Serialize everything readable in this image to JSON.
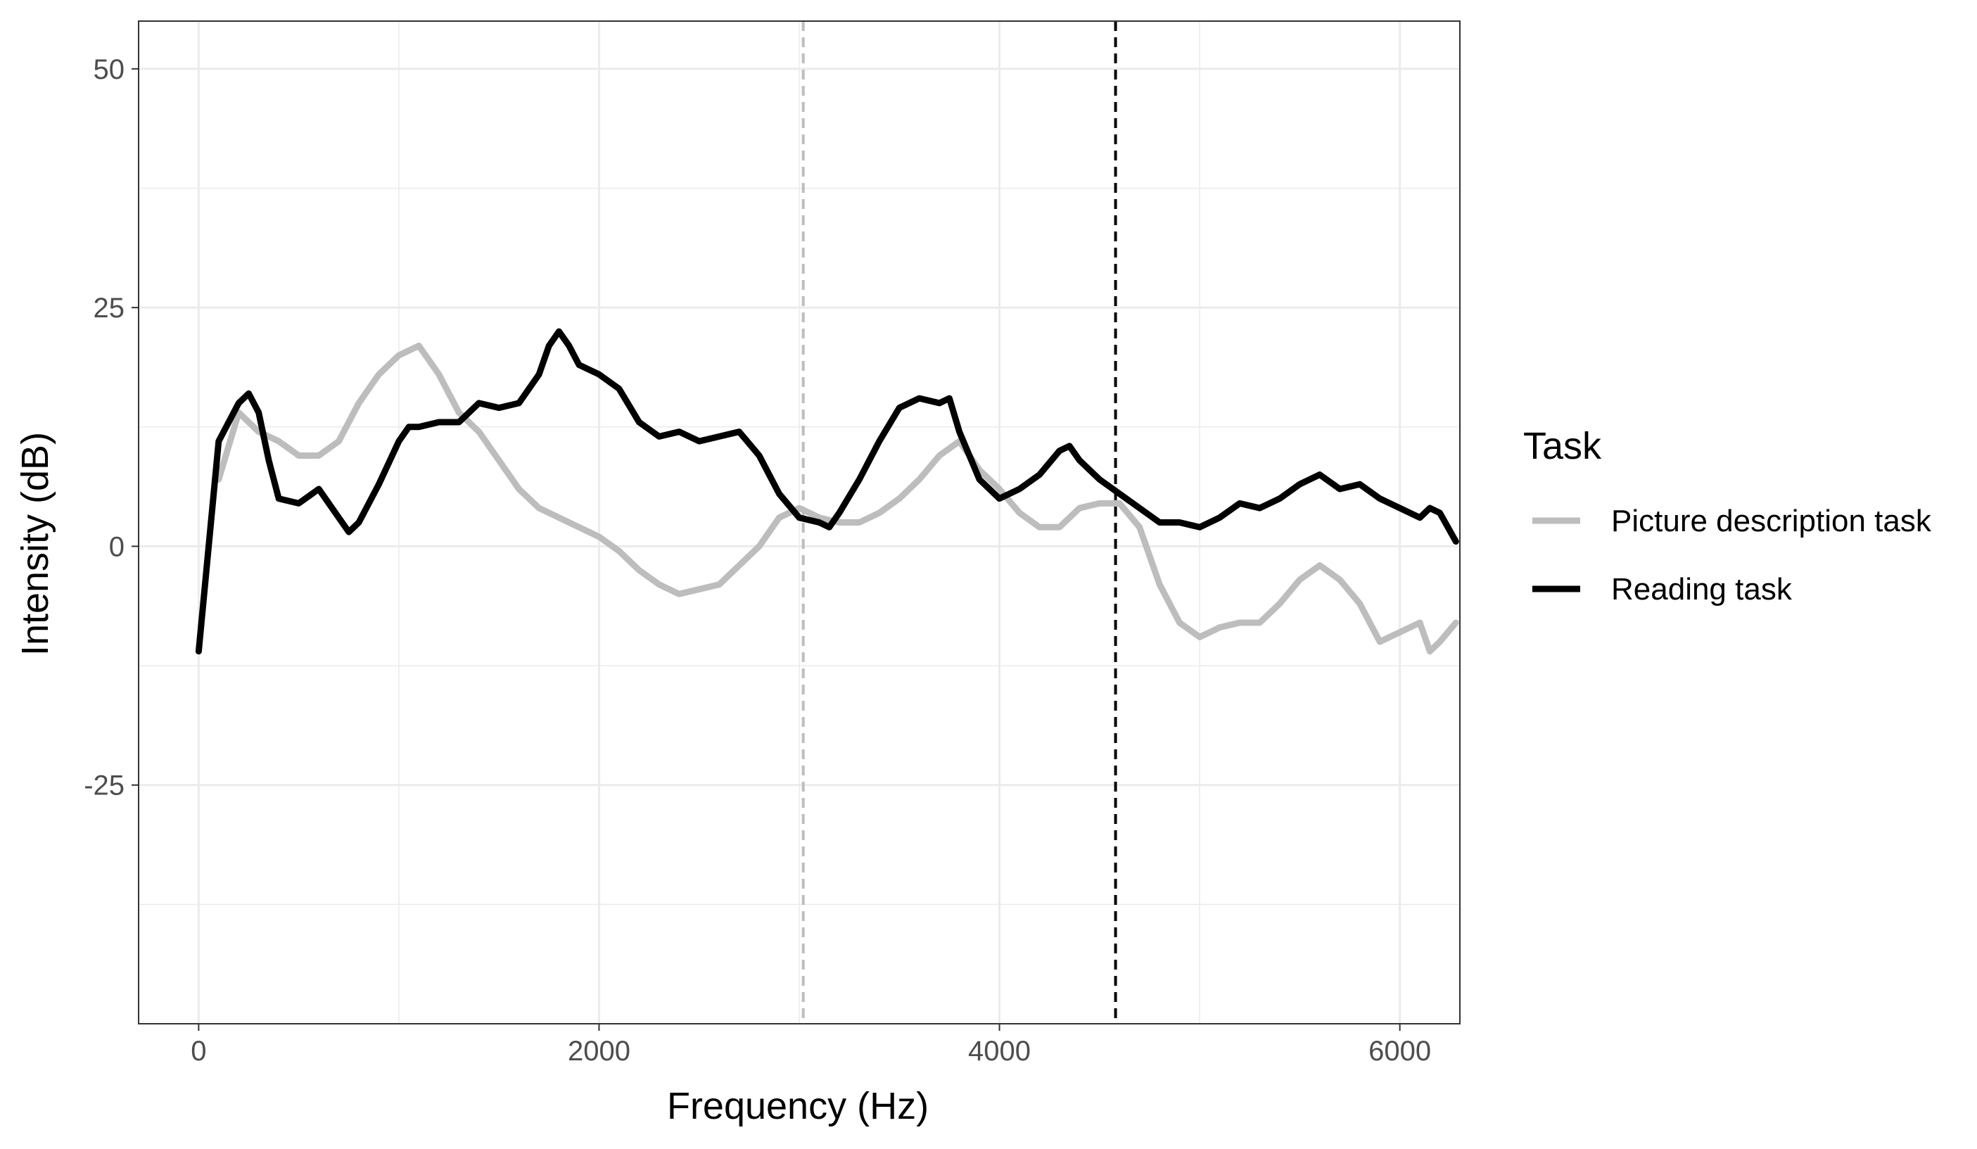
{
  "chart_data": {
    "type": "line",
    "title": "",
    "xlabel": "Frequency (Hz)",
    "ylabel": "Intensity (dB)",
    "xlim": [
      -300,
      6300
    ],
    "ylim": [
      -50,
      55
    ],
    "x_ticks": [
      0,
      2000,
      4000,
      6000
    ],
    "y_ticks": [
      -25,
      0,
      25,
      50
    ],
    "x_tick_labels": [
      "0",
      "2000",
      "4000",
      "6000"
    ],
    "y_tick_labels": [
      "-25",
      "0",
      "25",
      "50"
    ],
    "grid": true,
    "legend": {
      "title": "Task",
      "placement": "right"
    },
    "series": [
      {
        "name": "Picture description task",
        "color": "#bdbdbd",
        "points": [
          [
            100,
            7
          ],
          [
            200,
            14
          ],
          [
            300,
            12
          ],
          [
            400,
            11
          ],
          [
            500,
            9.5
          ],
          [
            600,
            9.5
          ],
          [
            700,
            11
          ],
          [
            800,
            15
          ],
          [
            900,
            18
          ],
          [
            1000,
            20
          ],
          [
            1100,
            21
          ],
          [
            1200,
            18
          ],
          [
            1300,
            14
          ],
          [
            1400,
            12
          ],
          [
            1500,
            9
          ],
          [
            1600,
            6
          ],
          [
            1700,
            4
          ],
          [
            1800,
            3
          ],
          [
            1900,
            2
          ],
          [
            2000,
            1
          ],
          [
            2100,
            -0.5
          ],
          [
            2200,
            -2.5
          ],
          [
            2300,
            -4
          ],
          [
            2400,
            -5
          ],
          [
            2500,
            -4.5
          ],
          [
            2600,
            -4
          ],
          [
            2700,
            -2
          ],
          [
            2800,
            0
          ],
          [
            2900,
            3
          ],
          [
            3000,
            4
          ],
          [
            3100,
            3
          ],
          [
            3200,
            2.5
          ],
          [
            3300,
            2.5
          ],
          [
            3400,
            3.5
          ],
          [
            3500,
            5
          ],
          [
            3600,
            7
          ],
          [
            3700,
            9.5
          ],
          [
            3800,
            11
          ],
          [
            3900,
            8
          ],
          [
            4000,
            6
          ],
          [
            4100,
            3.5
          ],
          [
            4200,
            2
          ],
          [
            4300,
            2
          ],
          [
            4400,
            4
          ],
          [
            4500,
            4.5
          ],
          [
            4600,
            4.5
          ],
          [
            4700,
            2
          ],
          [
            4800,
            -4
          ],
          [
            4900,
            -8
          ],
          [
            5000,
            -9.5
          ],
          [
            5100,
            -8.5
          ],
          [
            5200,
            -8
          ],
          [
            5300,
            -8
          ],
          [
            5400,
            -6
          ],
          [
            5500,
            -3.5
          ],
          [
            5600,
            -2
          ],
          [
            5700,
            -3.5
          ],
          [
            5800,
            -6
          ],
          [
            5900,
            -10
          ],
          [
            6000,
            -9
          ],
          [
            6100,
            -8
          ],
          [
            6150,
            -11
          ],
          [
            6200,
            -10
          ],
          [
            6280,
            -8
          ]
        ]
      },
      {
        "name": "Reading task",
        "color": "#000000",
        "points": [
          [
            0,
            -11
          ],
          [
            100,
            11
          ],
          [
            200,
            15
          ],
          [
            250,
            16
          ],
          [
            300,
            14
          ],
          [
            350,
            9
          ],
          [
            400,
            5
          ],
          [
            500,
            4.5
          ],
          [
            600,
            6
          ],
          [
            700,
            3
          ],
          [
            750,
            1.5
          ],
          [
            800,
            2.5
          ],
          [
            900,
            6.5
          ],
          [
            1000,
            11
          ],
          [
            1050,
            12.5
          ],
          [
            1100,
            12.5
          ],
          [
            1200,
            13
          ],
          [
            1300,
            13
          ],
          [
            1400,
            15
          ],
          [
            1500,
            14.5
          ],
          [
            1600,
            15
          ],
          [
            1700,
            18
          ],
          [
            1750,
            21
          ],
          [
            1800,
            22.5
          ],
          [
            1850,
            21
          ],
          [
            1900,
            19
          ],
          [
            2000,
            18
          ],
          [
            2100,
            16.5
          ],
          [
            2200,
            13
          ],
          [
            2300,
            11.5
          ],
          [
            2400,
            12
          ],
          [
            2500,
            11
          ],
          [
            2600,
            11.5
          ],
          [
            2700,
            12
          ],
          [
            2800,
            9.5
          ],
          [
            2900,
            5.5
          ],
          [
            3000,
            3
          ],
          [
            3100,
            2.5
          ],
          [
            3150,
            2
          ],
          [
            3200,
            3.5
          ],
          [
            3300,
            7
          ],
          [
            3400,
            11
          ],
          [
            3500,
            14.5
          ],
          [
            3600,
            15.5
          ],
          [
            3700,
            15
          ],
          [
            3750,
            15.5
          ],
          [
            3800,
            12
          ],
          [
            3900,
            7
          ],
          [
            4000,
            5
          ],
          [
            4100,
            6
          ],
          [
            4200,
            7.5
          ],
          [
            4300,
            10
          ],
          [
            4350,
            10.5
          ],
          [
            4400,
            9
          ],
          [
            4500,
            7
          ],
          [
            4600,
            5.5
          ],
          [
            4700,
            4
          ],
          [
            4800,
            2.5
          ],
          [
            4900,
            2.5
          ],
          [
            5000,
            2
          ],
          [
            5100,
            3
          ],
          [
            5200,
            4.5
          ],
          [
            5300,
            4
          ],
          [
            5400,
            5
          ],
          [
            5500,
            6.5
          ],
          [
            5600,
            7.5
          ],
          [
            5700,
            6
          ],
          [
            5800,
            6.5
          ],
          [
            5900,
            5
          ],
          [
            6000,
            4
          ],
          [
            6100,
            3
          ],
          [
            6150,
            4
          ],
          [
            6200,
            3.5
          ],
          [
            6280,
            0.5
          ]
        ]
      }
    ],
    "reference_lines": [
      {
        "x": 3020,
        "color": "#bdbdbd",
        "style": "dashed"
      },
      {
        "x": 4580,
        "color": "#000000",
        "style": "dashed"
      }
    ]
  }
}
